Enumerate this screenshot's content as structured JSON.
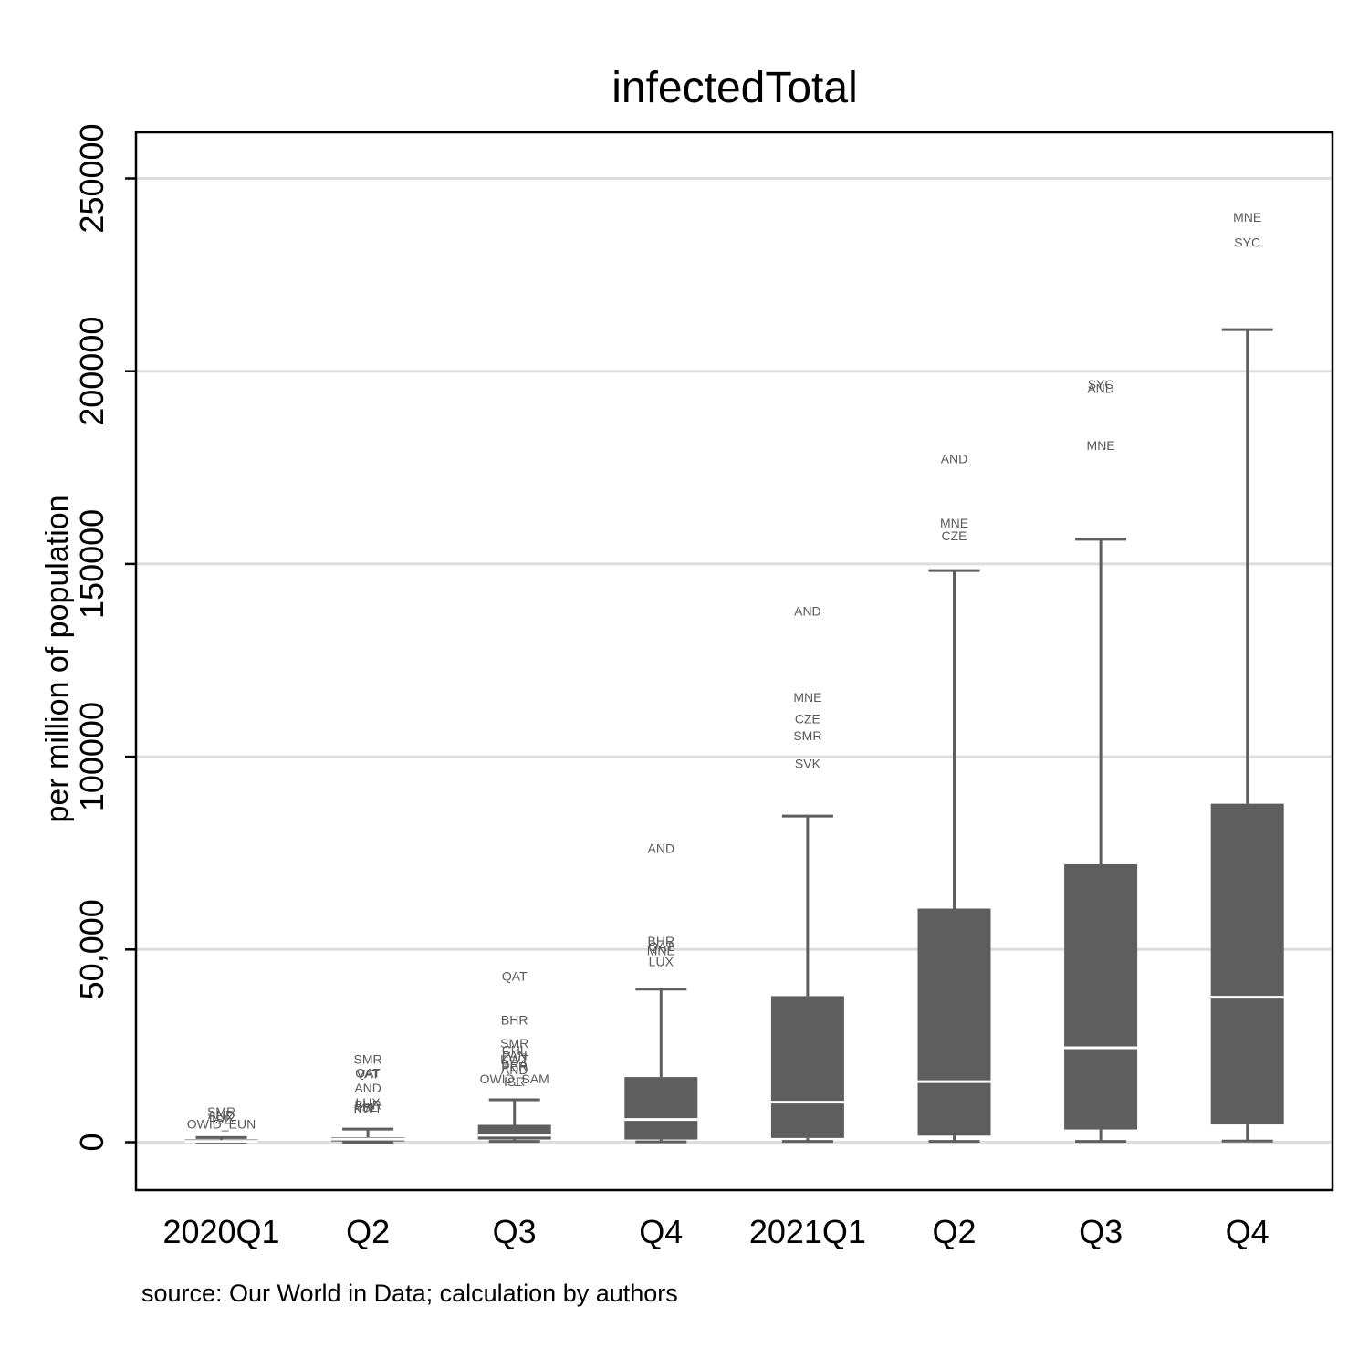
{
  "chart_data": {
    "type": "box",
    "title": "infectedTotal",
    "ylabel": "per million of population",
    "xlabel": "",
    "source": "source: Our World in Data; calculation by authors",
    "ylim": [
      -12000,
      262000
    ],
    "yticks": [
      {
        "value": 0,
        "label": "0"
      },
      {
        "value": 50000,
        "label": "50,000"
      },
      {
        "value": 100000,
        "label": "100000"
      },
      {
        "value": 150000,
        "label": "150000"
      },
      {
        "value": 200000,
        "label": "200000"
      },
      {
        "value": 250000,
        "label": "250000"
      }
    ],
    "grid": true,
    "colors": {
      "box": "#5e5e5e",
      "median": "#ffffff",
      "whisker": "#5e5e5e",
      "grid": "#dddddd",
      "outlier_text": "#595959"
    },
    "boxes": [
      {
        "category": "2020Q1",
        "whisker_low": 0,
        "q1": 0,
        "median": 200,
        "q3": 700,
        "whisker_high": 1200,
        "outliers": [
          {
            "label": "SMR",
            "value": 7900
          },
          {
            "label": "AND",
            "value": 7100
          },
          {
            "label": "LUX",
            "value": 6500
          },
          {
            "label": "ISL",
            "value": 5900
          },
          {
            "label": "OWID_EUN",
            "value": 4700
          }
        ]
      },
      {
        "category": "Q2",
        "whisker_low": 0,
        "q1": 200,
        "median": 800,
        "q3": 1300,
        "whisker_high": 3400,
        "outliers": [
          {
            "label": "SMR",
            "value": 21600
          },
          {
            "label": "QAT",
            "value": 18000
          },
          {
            "label": "VAT",
            "value": 17800
          },
          {
            "label": "AND",
            "value": 14100
          },
          {
            "label": "LUX",
            "value": 10300
          },
          {
            "label": "BHR",
            "value": 9700
          },
          {
            "label": "ISL",
            "value": 9100
          },
          {
            "label": "KWT",
            "value": 8700
          }
        ]
      },
      {
        "category": "Q3",
        "whisker_low": 200,
        "q1": 700,
        "median": 1800,
        "q3": 4500,
        "whisker_high": 11000,
        "outliers": [
          {
            "label": "QAT",
            "value": 43100
          },
          {
            "label": "BHR",
            "value": 31700
          },
          {
            "label": "SMR",
            "value": 25700
          },
          {
            "label": "CHL",
            "value": 23900
          },
          {
            "label": "PAN",
            "value": 22500
          },
          {
            "label": "KWT",
            "value": 21600
          },
          {
            "label": "BRA",
            "value": 20300
          },
          {
            "label": "PER",
            "value": 19600
          },
          {
            "label": "AND",
            "value": 18800
          },
          {
            "label": "ISR",
            "value": 15800
          },
          {
            "label": "OWID_SAM",
            "value": 16400
          }
        ]
      },
      {
        "category": "Q4",
        "whisker_low": 100,
        "q1": 700,
        "median": 5900,
        "q3": 16900,
        "whisker_high": 39700,
        "outliers": [
          {
            "label": "AND",
            "value": 76200
          },
          {
            "label": "BHR",
            "value": 52200
          },
          {
            "label": "QAT",
            "value": 50800
          },
          {
            "label": "MNE",
            "value": 49700
          },
          {
            "label": "LUX",
            "value": 46900
          }
        ]
      },
      {
        "category": "2021Q1",
        "whisker_low": 200,
        "q1": 1100,
        "median": 10400,
        "q3": 37900,
        "whisker_high": 84600,
        "outliers": [
          {
            "label": "AND",
            "value": 137800
          },
          {
            "label": "MNE",
            "value": 115400
          },
          {
            "label": "CZE",
            "value": 109800
          },
          {
            "label": "SMR",
            "value": 105500
          },
          {
            "label": "SVK",
            "value": 98200
          }
        ]
      },
      {
        "category": "Q2",
        "whisker_low": 200,
        "q1": 1700,
        "median": 15700,
        "q3": 60600,
        "whisker_high": 148300,
        "outliers": [
          {
            "label": "AND",
            "value": 177300
          },
          {
            "label": "MNE",
            "value": 160600
          },
          {
            "label": "CZE",
            "value": 157300
          }
        ]
      },
      {
        "category": "Q3",
        "whisker_low": 200,
        "q1": 3300,
        "median": 24500,
        "q3": 72100,
        "whisker_high": 156400,
        "outliers": [
          {
            "label": "SYC",
            "value": 196600
          },
          {
            "label": "AND",
            "value": 195500
          },
          {
            "label": "MNE",
            "value": 180800
          }
        ]
      },
      {
        "category": "Q4",
        "whisker_low": 300,
        "q1": 4600,
        "median": 37600,
        "q3": 87800,
        "whisker_high": 210800,
        "outliers": [
          {
            "label": "MNE",
            "value": 239900
          },
          {
            "label": "SYC",
            "value": 233400
          }
        ]
      }
    ]
  }
}
